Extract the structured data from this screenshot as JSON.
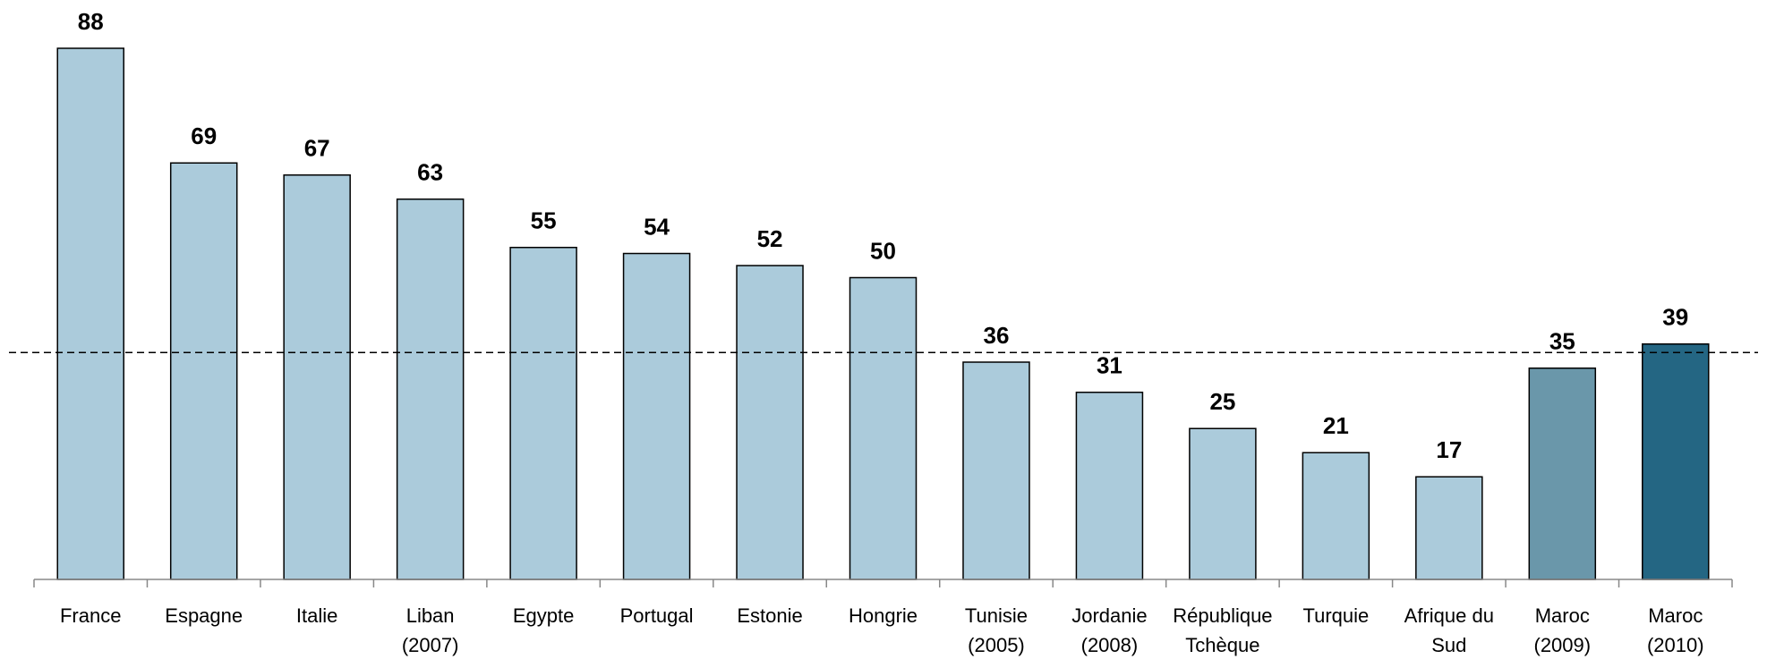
{
  "chart_data": {
    "type": "bar",
    "categories": [
      [
        "France"
      ],
      [
        "Espagne"
      ],
      [
        "Italie"
      ],
      [
        "Liban",
        "(2007)"
      ],
      [
        "Egypte"
      ],
      [
        "Portugal"
      ],
      [
        "Estonie"
      ],
      [
        "Hongrie"
      ],
      [
        "Tunisie",
        "(2005)"
      ],
      [
        "Jordanie",
        "(2008)"
      ],
      [
        "République",
        "Tchèque"
      ],
      [
        "Turquie"
      ],
      [
        "Afrique du",
        "Sud"
      ],
      [
        "Maroc",
        "(2009)"
      ],
      [
        "Maroc",
        "(2010)"
      ]
    ],
    "values": [
      88,
      69,
      67,
      63,
      55,
      54,
      52,
      50,
      36,
      31,
      25,
      21,
      17,
      35,
      39
    ],
    "colors": [
      "#abcbdb",
      "#abcbdb",
      "#abcbdb",
      "#abcbdb",
      "#abcbdb",
      "#abcbdb",
      "#abcbdb",
      "#abcbdb",
      "#abcbdb",
      "#abcbdb",
      "#abcbdb",
      "#abcbdb",
      "#abcbdb",
      "#6a97aa",
      "#246683"
    ],
    "reference_value": 37.6,
    "ylim": [
      0,
      96
    ]
  }
}
